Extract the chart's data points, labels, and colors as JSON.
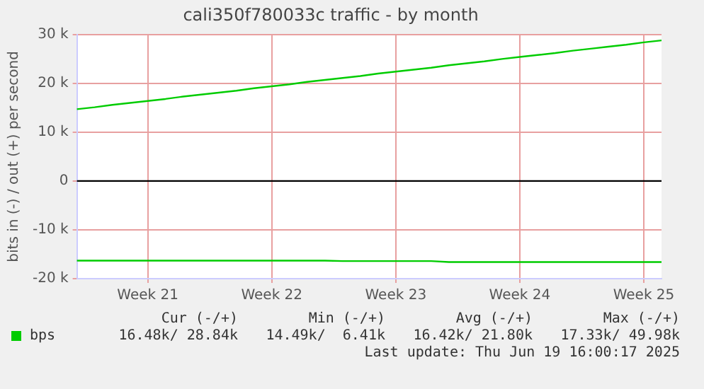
{
  "chart_data": {
    "type": "line",
    "title": "cali350f780033c traffic - by month",
    "ylabel": "bits in (-) / out (+) per second",
    "categories": [
      null,
      null,
      null,
      null,
      "Week 21",
      null,
      null,
      null,
      null,
      null,
      null,
      "Week 22",
      null,
      null,
      null,
      null,
      null,
      null,
      "Week 23",
      null,
      null,
      null,
      null,
      null,
      null,
      "Week 24",
      null,
      null,
      null,
      null,
      null,
      null,
      "Week 25",
      null
    ],
    "ylim": [
      -20000,
      30000
    ],
    "yticks": [
      {
        "value": -20000,
        "label": "-20 k"
      },
      {
        "value": -10000,
        "label": "-10 k"
      },
      0,
      {
        "value": 10000,
        "label": "10 k"
      },
      {
        "value": 20000,
        "label": "20 k"
      },
      {
        "value": 30000,
        "label": "30 k"
      }
    ],
    "grid": true,
    "legend": "bottom",
    "marker": "none",
    "line_style": "solid",
    "series": [
      {
        "name": "bps",
        "color": "#00cc00",
        "values": [
          14700,
          15100,
          15600,
          16000,
          16400,
          16800,
          17300,
          17700,
          18100,
          18500,
          19000,
          19400,
          19800,
          20300,
          20700,
          21100,
          21500,
          22000,
          22400,
          22800,
          23200,
          23700,
          24100,
          24500,
          25000,
          25400,
          25800,
          26200,
          26700,
          27100,
          27500,
          27900,
          28400,
          28800
        ]
      },
      {
        "color": "#00cc00",
        "values": [
          -16300,
          -16300,
          -16300,
          -16300,
          -16300,
          -16300,
          -16300,
          -16300,
          -16300,
          -16300,
          -16300,
          -16300,
          -16300,
          -16300,
          -16300,
          -16400,
          -16400,
          -16400,
          -16400,
          -16400,
          -16400,
          -16600,
          -16600,
          -16600,
          -16600,
          -16600,
          -16600,
          -16600,
          -16600,
          -16600,
          -16600,
          -16600,
          -16600,
          -16600
        ]
      }
    ],
    "ref_lines": [
      {
        "axis": "y",
        "value": 0,
        "color": "#000000"
      }
    ],
    "annotations": [
      "Cur (-/+)",
      "Min (-/+)",
      "Avg (-/+)",
      "Max (-/+)",
      "16.48k/ 28.84k",
      "14.49k/  6.41k",
      "16.42k/ 21.80k",
      "17.33k/ 49.98k",
      "Last update: Thu Jun 19 16:00:17 2025"
    ]
  }
}
